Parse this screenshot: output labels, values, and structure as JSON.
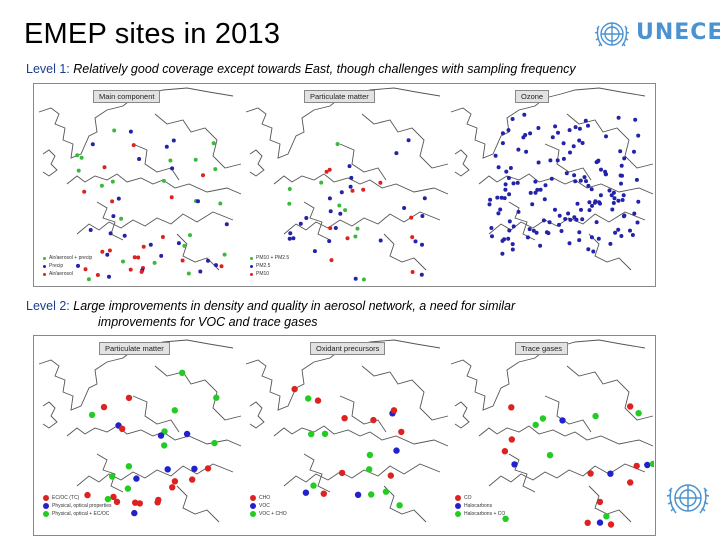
{
  "title": "EMEP sites in 2013",
  "brand": {
    "logo_text": "UNECE",
    "logo_icon": "un-emblem-icon",
    "color": "#4b92d1"
  },
  "level1": {
    "label": "Level 1:",
    "text": "Relatively good coverage except towards East, though challenges with sampling frequency",
    "panels": [
      {
        "title": "Main component",
        "legend": [
          {
            "label": "Air/aerosol + precip",
            "color": "#3cb83c"
          },
          {
            "label": "Precip",
            "color": "#2222aa"
          },
          {
            "label": "Air/aerosol",
            "color": "#dd2222"
          }
        ]
      },
      {
        "title": "Particulate matter",
        "legend": [
          {
            "label": "PM10 + PM2.5",
            "color": "#3cb83c"
          },
          {
            "label": "PM2.5",
            "color": "#2222aa"
          },
          {
            "label": "PM10",
            "color": "#dd2222"
          }
        ]
      },
      {
        "title": "Ozone",
        "legend": []
      }
    ]
  },
  "level2": {
    "label": "Level 2:",
    "text_line1": "Large improvements in density and quality in aerosol network, a need for similar",
    "text_line2": "improvements for VOC and trace gases",
    "panels": [
      {
        "title": "Particulate matter",
        "legend": [
          {
            "label": "EC/OC (TC)",
            "color": "#dd2222"
          },
          {
            "label": "Physical, optical properties",
            "color": "#2222cc"
          },
          {
            "label": "Physical, optical + EC/OC",
            "color": "#22cc22"
          }
        ]
      },
      {
        "title": "Oxidant precursors",
        "legend": [
          {
            "label": "CHO",
            "color": "#dd2222"
          },
          {
            "label": "VOC",
            "color": "#2222cc"
          },
          {
            "label": "VOC + CHO",
            "color": "#22cc22"
          }
        ]
      },
      {
        "title": "Trace gases",
        "legend": [
          {
            "label": "CO",
            "color": "#dd2222"
          },
          {
            "label": "Halocarbons",
            "color": "#2222cc"
          },
          {
            "label": "Halocarbons + CO",
            "color": "#22cc22"
          }
        ]
      }
    ]
  },
  "footer": {
    "emblem_icon": "un-emblem-icon"
  }
}
